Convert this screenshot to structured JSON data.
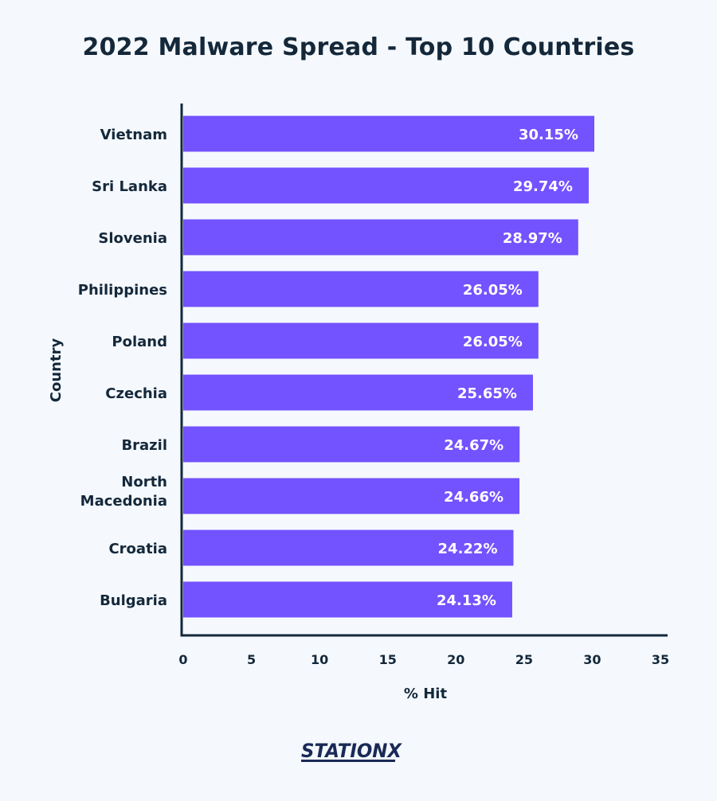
{
  "chart_data": {
    "type": "bar",
    "orientation": "horizontal",
    "title": "2022 Malware Spread - Top 10 Countries",
    "xlabel": "% Hit",
    "ylabel": "Country",
    "xlim": [
      0,
      35
    ],
    "x_ticks": [
      "0",
      "5",
      "10",
      "15",
      "20",
      "25",
      "30",
      "35"
    ],
    "categories": [
      "Vietnam",
      "Sri Lanka",
      "Slovenia",
      "Philippines",
      "Poland",
      "Czechia",
      "Brazil",
      "North Macedonia",
      "Croatia",
      "Bulgaria"
    ],
    "values": [
      30.15,
      29.74,
      28.97,
      26.05,
      26.05,
      25.65,
      24.67,
      24.66,
      24.22,
      24.13
    ],
    "data_labels": [
      "30.15%",
      "29.74%",
      "28.97%",
      "26.05%",
      "26.05%",
      "25.65%",
      "24.67%",
      "24.66%",
      "24.22%",
      "24.13%"
    ],
    "grid": false,
    "legend": "none",
    "bar_color": "#7352ff",
    "axis_color": "#14283a"
  },
  "logo": {
    "text": "STATIONX"
  }
}
